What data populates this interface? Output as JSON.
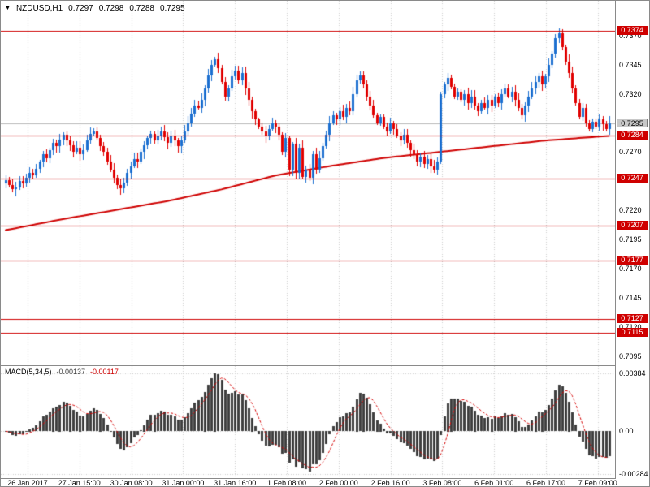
{
  "window": {
    "header": {
      "icon": "▼",
      "symbol": "NZDUSD,H1",
      "open": "0.7297",
      "high": "0.7298",
      "low": "0.7288",
      "close": "0.7295"
    }
  },
  "colors": {
    "up_candle": "#1b6fd0",
    "down_candle": "#e00000",
    "ma_line": "#cf0000",
    "hline": "#cf0000",
    "hline_label_bg": "#cf0000",
    "histogram": "#3f3f3f",
    "signal_line": "#d40000",
    "grid": "#cdcdcd",
    "current_price_line": "#b8b8b8",
    "axis_text": "#000000"
  },
  "chart_data": {
    "type": "candlestick",
    "title": "NZDUSD,H1",
    "symbol": "NZDUSD",
    "timeframe": "H1",
    "y_axis": {
      "max": 0.74,
      "min": 0.7087,
      "ticks": [
        "0.7370",
        "0.7345",
        "0.7320",
        "0.7270",
        "0.7220",
        "0.7195",
        "0.7170",
        "0.7145",
        "0.7120",
        "0.7095"
      ]
    },
    "x_axis": {
      "labels": [
        "26 Jan 2017",
        "27 Jan 15:00",
        "30 Jan 08:00",
        "31 Jan 00:00",
        "31 Jan 16:00",
        "1 Feb 08:00",
        "2 Feb 00:00",
        "2 Feb 16:00",
        "3 Feb 08:00",
        "6 Feb 01:00",
        "6 Feb 17:00",
        "7 Feb 09:00"
      ]
    },
    "current_price": 0.7295,
    "hlines": [
      0.7374,
      0.7284,
      0.7247,
      0.7207,
      0.7177,
      0.7127,
      0.7115
    ],
    "close": [
      0.7246,
      0.7242,
      0.7238,
      0.724,
      0.7245,
      0.7243,
      0.7248,
      0.7252,
      0.725,
      0.7256,
      0.7262,
      0.7268,
      0.7265,
      0.7272,
      0.7278,
      0.7275,
      0.7281,
      0.7285,
      0.728,
      0.7276,
      0.727,
      0.7274,
      0.7268,
      0.7272,
      0.728,
      0.7286,
      0.7288,
      0.7282,
      0.7275,
      0.727,
      0.7262,
      0.7255,
      0.7248,
      0.7242,
      0.7239,
      0.7244,
      0.7252,
      0.7258,
      0.7264,
      0.7262,
      0.727,
      0.7276,
      0.7282,
      0.7286,
      0.728,
      0.7284,
      0.7288,
      0.7283,
      0.7278,
      0.7284,
      0.728,
      0.7275,
      0.728,
      0.7288,
      0.7295,
      0.7303,
      0.731,
      0.7308,
      0.7315,
      0.7325,
      0.7336,
      0.7345,
      0.735,
      0.7342,
      0.733,
      0.7318,
      0.7325,
      0.7335,
      0.734,
      0.7332,
      0.7338,
      0.7325,
      0.7315,
      0.7305,
      0.7298,
      0.7292,
      0.7288,
      0.7284,
      0.729,
      0.7295,
      0.7292,
      0.7285,
      0.727,
      0.7282,
      0.7255,
      0.7277,
      0.7252,
      0.7274,
      0.7249,
      0.7255,
      0.7248,
      0.7268,
      0.7255,
      0.7265,
      0.7275,
      0.7285,
      0.7295,
      0.7302,
      0.7298,
      0.7305,
      0.73,
      0.7308,
      0.7305,
      0.732,
      0.7332,
      0.7336,
      0.7328,
      0.7318,
      0.731,
      0.7302,
      0.7295,
      0.73,
      0.7292,
      0.7288,
      0.7295,
      0.729,
      0.7284,
      0.728,
      0.7285,
      0.7278,
      0.7272,
      0.7268,
      0.7262,
      0.7266,
      0.726,
      0.7264,
      0.7258,
      0.7255,
      0.7262,
      0.732,
      0.7328,
      0.7334,
      0.7326,
      0.7318,
      0.7322,
      0.7315,
      0.732,
      0.7312,
      0.7318,
      0.731,
      0.7305,
      0.7312,
      0.7308,
      0.7315,
      0.731,
      0.7318,
      0.7312,
      0.732,
      0.7325,
      0.7318,
      0.7322,
      0.7315,
      0.7308,
      0.7302,
      0.731,
      0.7318,
      0.7325,
      0.733,
      0.7335,
      0.7328,
      0.7335,
      0.7345,
      0.7355,
      0.7368,
      0.7372,
      0.736,
      0.7348,
      0.7338,
      0.7325,
      0.7312,
      0.73,
      0.7308,
      0.7295,
      0.729,
      0.7296,
      0.7292,
      0.7298,
      0.7294,
      0.729,
      0.7295
    ],
    "ma_anchors": [
      [
        0,
        0.7203
      ],
      [
        16,
        0.7212
      ],
      [
        32,
        0.722
      ],
      [
        48,
        0.7228
      ],
      [
        64,
        0.7238
      ],
      [
        80,
        0.725
      ],
      [
        96,
        0.7258
      ],
      [
        112,
        0.7265
      ],
      [
        128,
        0.727
      ],
      [
        144,
        0.7275
      ],
      [
        160,
        0.728
      ],
      [
        179,
        0.7284
      ]
    ],
    "macd": {
      "label": "MACD(5,34,5)",
      "fast": 5,
      "slow": 34,
      "signal": 5,
      "value_main": "-0.00137",
      "value_signal": "-0.00117",
      "ticks": [
        "0.00384",
        "0.00",
        "-0.00284"
      ],
      "max": 0.0043,
      "min": -0.0031
    }
  }
}
